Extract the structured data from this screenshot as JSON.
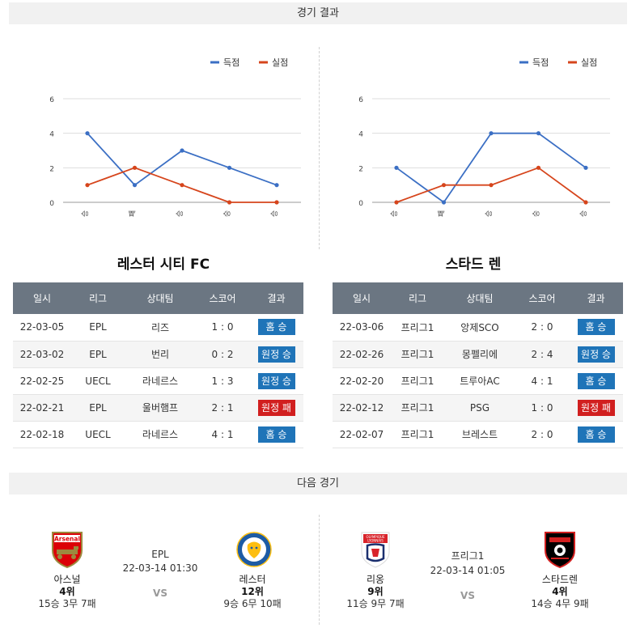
{
  "results_header": "경기 결과",
  "next_header": "다음 경기",
  "legend": {
    "scored": "득점",
    "conceded": "실점"
  },
  "colors": {
    "scored": "#3b6fc4",
    "conceded": "#d6451c",
    "win": "#1f74b8",
    "loss": "#d11f1f"
  },
  "chart_data": [
    {
      "type": "line",
      "categories": [
        "승",
        "패",
        "승",
        "승",
        "승"
      ],
      "ylim": [
        0,
        6
      ],
      "yticks": [
        0,
        2,
        4,
        6
      ],
      "series": [
        {
          "name": "득점",
          "values": [
            4,
            1,
            3,
            2,
            1
          ]
        },
        {
          "name": "실점",
          "values": [
            1,
            2,
            1,
            0,
            0
          ]
        }
      ]
    },
    {
      "type": "line",
      "categories": [
        "승",
        "패",
        "승",
        "승",
        "승"
      ],
      "ylim": [
        0,
        6
      ],
      "yticks": [
        0,
        2,
        4,
        6
      ],
      "series": [
        {
          "name": "득점",
          "values": [
            2,
            0,
            4,
            4,
            2
          ]
        },
        {
          "name": "실점",
          "values": [
            0,
            1,
            1,
            2,
            0
          ]
        }
      ]
    }
  ],
  "columns": [
    "일시",
    "리그",
    "상대팀",
    "스코어",
    "결과"
  ],
  "left_team": {
    "name": "레스터 시티 FC",
    "rows": [
      {
        "date": "22-03-05",
        "league": "EPL",
        "opponent": "리즈",
        "score": "1 : 0",
        "result": "홈 승",
        "kind": "win"
      },
      {
        "date": "22-03-02",
        "league": "EPL",
        "opponent": "번리",
        "score": "0 : 2",
        "result": "원정 승",
        "kind": "win"
      },
      {
        "date": "22-02-25",
        "league": "UECL",
        "opponent": "라네르스",
        "score": "1 : 3",
        "result": "원정 승",
        "kind": "win"
      },
      {
        "date": "22-02-21",
        "league": "EPL",
        "opponent": "울버햄프",
        "score": "2 : 1",
        "result": "원정 패",
        "kind": "loss"
      },
      {
        "date": "22-02-18",
        "league": "UECL",
        "opponent": "라네르스",
        "score": "4 : 1",
        "result": "홈 승",
        "kind": "win"
      }
    ]
  },
  "right_team": {
    "name": "스타드 렌",
    "rows": [
      {
        "date": "22-03-06",
        "league": "프리그1",
        "opponent": "앙제SCO",
        "score": "2 : 0",
        "result": "홈 승",
        "kind": "win"
      },
      {
        "date": "22-02-26",
        "league": "프리그1",
        "opponent": "몽펠리에",
        "score": "2 : 4",
        "result": "원정 승",
        "kind": "win"
      },
      {
        "date": "22-02-20",
        "league": "프리그1",
        "opponent": "트루아AC",
        "score": "4 : 1",
        "result": "홈 승",
        "kind": "win"
      },
      {
        "date": "22-02-12",
        "league": "프리그1",
        "opponent": "PSG",
        "score": "1 : 0",
        "result": "원정 패",
        "kind": "loss"
      },
      {
        "date": "22-02-07",
        "league": "프리그1",
        "opponent": "브레스트",
        "score": "2 : 0",
        "result": "홈 승",
        "kind": "win"
      }
    ]
  },
  "next_matches": [
    {
      "league": "EPL",
      "time": "22-03-14 01:30",
      "vs": "VS",
      "home": {
        "name": "아스널",
        "rank": "4위",
        "record": "15승 3무 7패",
        "logo": "arsenal-logo",
        "logo_text": "Arsenal"
      },
      "away": {
        "name": "레스터",
        "rank": "12위",
        "record": "9승 6무 10패",
        "logo": "leicester-logo"
      }
    },
    {
      "league": "프리그1",
      "time": "22-03-14 01:05",
      "vs": "VS",
      "home": {
        "name": "리옹",
        "rank": "9위",
        "record": "11승 9무 7패",
        "logo": "lyon-logo",
        "logo_text": "OLYMPIQUE LYONNAIS"
      },
      "away": {
        "name": "스타드렌",
        "rank": "4위",
        "record": "14승 4무 9패",
        "logo": "rennes-logo"
      }
    }
  ]
}
